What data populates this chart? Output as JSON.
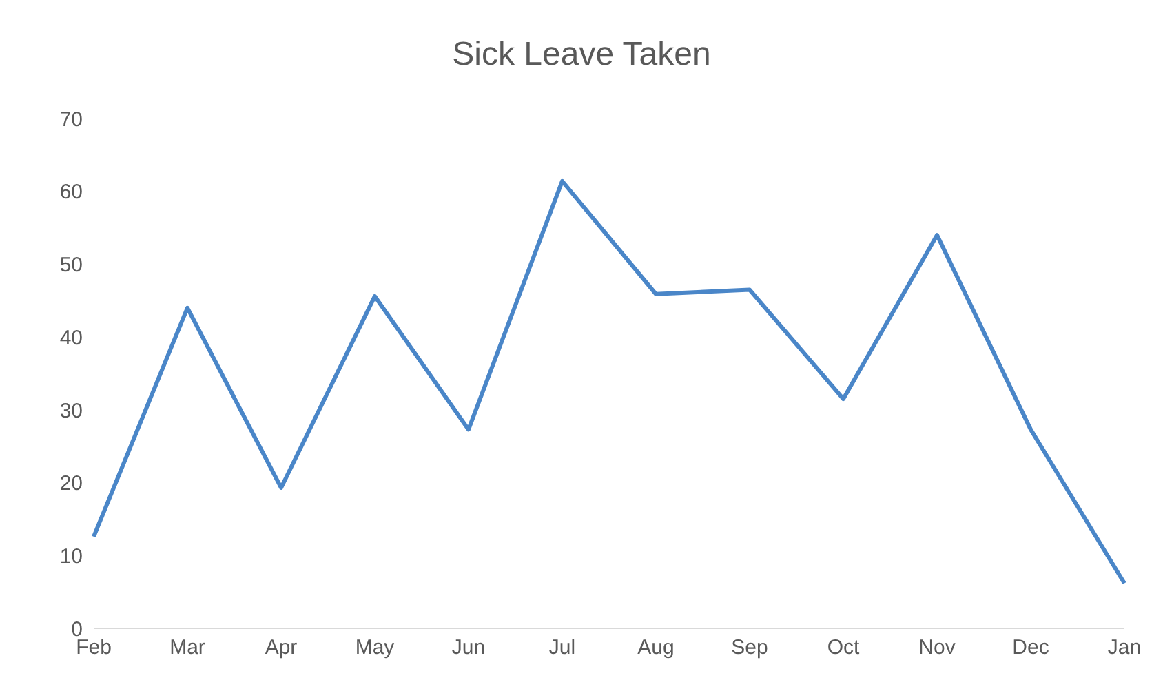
{
  "chart_data": {
    "type": "line",
    "title": "Sick Leave Taken",
    "categories": [
      "Feb",
      "Mar",
      "Apr",
      "May",
      "Jun",
      "Jul",
      "Aug",
      "Sep",
      "Oct",
      "Nov",
      "Dec",
      "Jan"
    ],
    "series": [
      {
        "color": "#4a86c8",
        "values": [
          12.6,
          44,
          19.3,
          45.6,
          27.3,
          61.4,
          45.9,
          46.5,
          31.5,
          54,
          27.3,
          6.2
        ]
      }
    ],
    "ylim": [
      0,
      70
    ],
    "yticks": [
      0,
      10,
      20,
      30,
      40,
      50,
      60,
      70
    ],
    "grid": false,
    "legend": false,
    "marker": "none",
    "line_style": "solid"
  }
}
